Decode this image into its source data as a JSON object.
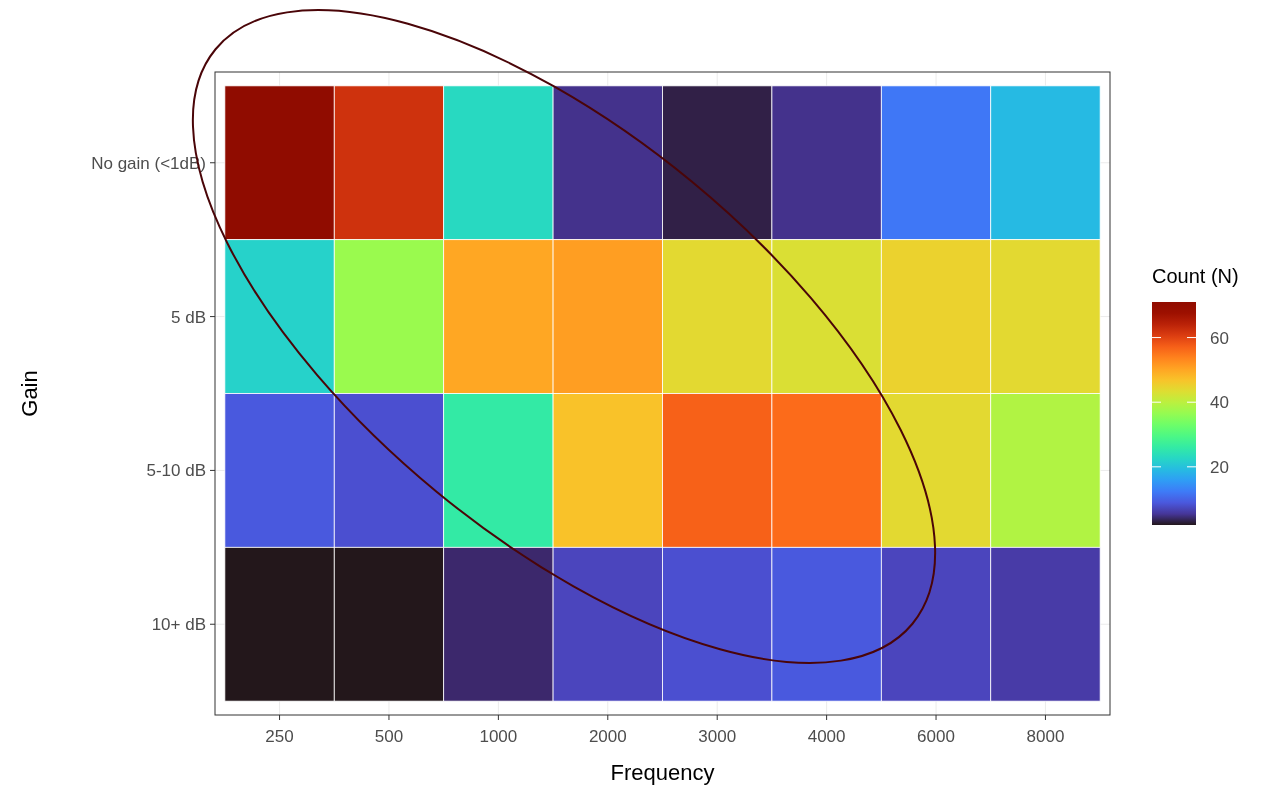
{
  "chart_data": {
    "type": "heatmap",
    "xlabel": "Frequency",
    "ylabel": "Gain",
    "legend_title": "Count (N)",
    "categories": [
      "250",
      "500",
      "1000",
      "2000",
      "3000",
      "4000",
      "6000",
      "8000"
    ],
    "y_categories": [
      "No gain (<1dB)",
      "5 dB",
      "5-10 dB",
      "10+ dB"
    ],
    "cells": [
      [
        71,
        62,
        23,
        5,
        3,
        5,
        12,
        19
      ],
      [
        22,
        37,
        50,
        51,
        44,
        43,
        45,
        44
      ],
      [
        9,
        8,
        26,
        47,
        57,
        56,
        44,
        39
      ],
      [
        2,
        2,
        4,
        7,
        8,
        9,
        7,
        6
      ]
    ],
    "clim": [
      2,
      71
    ],
    "cticks": [
      20,
      40,
      60
    ],
    "grid": true
  }
}
